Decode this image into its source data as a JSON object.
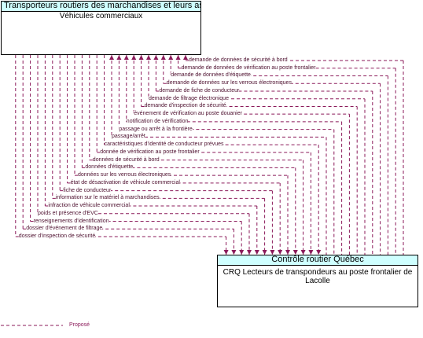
{
  "top_box": {
    "header": "Transporteurs routiers des marchandises et leurs as...",
    "body": "Véhicules commerciaux"
  },
  "bottom_box": {
    "header": "Contrôle routier Québec",
    "body": "CRQ Lecteurs de transpondeurs au poste frontalier de Lacolle"
  },
  "flows": [
    "demande de données de sécurité à bord",
    "demande de données de vérification au poste frontalier",
    "demande de données d'étiquette",
    "demande de données sur les verrous électroniques",
    "demande de fiche de conducteur",
    "demande de filtrage électronique",
    "demande d'inspection de sécurité",
    "événement de vérification au poste douanier",
    "notification de vérification",
    "passage ou arrêt à la frontière",
    "passage/arrêt",
    "caractéristiques d'identité de conducteur prévues",
    "donnée de vérification au poste frontalier",
    "données de sécurité à bord",
    "données d'étiquette",
    "données sur les verrous électroniques",
    "état de désactivation de véhicule commercial",
    "fiche de conducteur",
    "information sur le matériel à marchandises",
    "infraction de véhicule commercial",
    "poids et présence d'EVC",
    "renseignements d'identification",
    "dossier d'événement de filtrage",
    "dossier d'inspection de sécurité"
  ],
  "legend": {
    "label": "Proposé"
  },
  "colors": {
    "header_fill": "#cfffff",
    "flow_line": "#8b1a5a"
  }
}
